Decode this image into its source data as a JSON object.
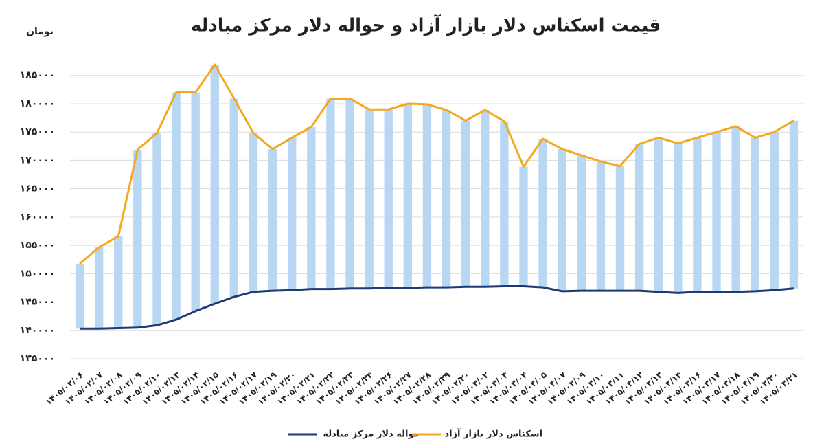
{
  "chart_data": {
    "type": "range-bar-line",
    "title": "قیمت اسکناس دلار بازار آزاد و حواله دلار مرکز مبادله",
    "y_label": "تومان",
    "categories": [
      "۱۴۰۵/۰۲/۰۶",
      "۱۴۰۵/۰۲/۰۷",
      "۱۴۰۵/۰۲/۰۸",
      "۱۴۰۵/۰۲/۰۹",
      "۱۴۰۵/۰۲/۱۰",
      "۱۴۰۵/۰۲/۱۳",
      "۱۴۰۵/۰۲/۱۴",
      "۱۴۰۵/۰۲/۱۵",
      "۱۴۰۵/۰۲/۱۶",
      "۱۴۰۵/۰۲/۱۷",
      "۱۴۰۵/۰۲/۱۹",
      "۱۴۰۵/۰۲/۲۰",
      "۱۴۰۵/۰۲/۲۱",
      "۱۴۰۵/۰۲/۲۲",
      "۱۴۰۵/۰۲/۲۳",
      "۱۴۰۵/۰۲/۲۴",
      "۱۴۰۵/۰۲/۲۶",
      "۱۴۰۵/۰۲/۲۷",
      "۱۴۰۵/۰۲/۲۸",
      "۱۴۰۵/۰۲/۲۹",
      "۱۴۰۵/۰۲/۳۰",
      "۱۴۰۵/۰۳/۰۲",
      "۱۴۰۵/۰۳/۰۳",
      "۱۴۰۵/۰۳/۰۴",
      "۱۴۰۵/۰۳/۰۵",
      "۱۴۰۵/۰۳/۰۷",
      "۱۴۰۵/۰۳/۰۹",
      "۱۴۰۵/۰۳/۱۰",
      "۱۴۰۵/۰۳/۱۱",
      "۱۴۰۵/۰۳/۱۲",
      "۱۴۰۵/۰۳/۱۳",
      "۱۴۰۵/۰۳/۱۴",
      "۱۴۰۵/۰۳/۱۶",
      "۱۴۰۵/۰۳/۱۷",
      "۱۴۰۵/۰۳/۱۸",
      "۱۴۰۵/۰۳/۱۹",
      "۱۴۰۵/۰۳/۲۰",
      "۱۴۰۵/۰۳/۲۱"
    ],
    "series": [
      {
        "name": "حواله دلار مرکز مبادله",
        "color": "#1f3a73",
        "values": [
          140300,
          140300,
          140400,
          140500,
          140900,
          141900,
          143400,
          144700,
          145900,
          146800,
          147000,
          147100,
          147300,
          147300,
          147400,
          147400,
          147500,
          147500,
          147600,
          147600,
          147700,
          147700,
          147800,
          147800,
          147600,
          146900,
          147000,
          147000,
          147000,
          147000,
          146800,
          146600,
          146800,
          146800,
          146800,
          146900,
          147100,
          147400
        ]
      },
      {
        "name": "اسکناس دلار بازار آزاد",
        "color": "#f5a81c",
        "values": [
          151750,
          154650,
          156600,
          171900,
          174800,
          182000,
          182000,
          186900,
          180900,
          174800,
          172000,
          174000,
          175900,
          180900,
          180900,
          179000,
          179000,
          180000,
          179900,
          178900,
          177000,
          178900,
          176900,
          168900,
          173800,
          172000,
          170900,
          169800,
          169000,
          172900,
          174000,
          173000,
          174000,
          175000,
          176000,
          174000,
          175000,
          177000
        ]
      }
    ],
    "bar_color": "#b8d7f3",
    "ylim": [
      135000,
      188000
    ],
    "yticks": [
      {
        "value": 135000,
        "label": "۱۳۵۰۰۰"
      },
      {
        "value": 140000,
        "label": "۱۴۰۰۰۰"
      },
      {
        "value": 145000,
        "label": "۱۴۵۰۰۰"
      },
      {
        "value": 150000,
        "label": "۱۵۰۰۰۰"
      },
      {
        "value": 155000,
        "label": "۱۵۵۰۰۰"
      },
      {
        "value": 160000,
        "label": "۱۶۰۰۰۰"
      },
      {
        "value": 165000,
        "label": "۱۶۵۰۰۰"
      },
      {
        "value": 170000,
        "label": "۱۷۰۰۰۰"
      },
      {
        "value": 175000,
        "label": "۱۷۵۰۰۰"
      },
      {
        "value": 180000,
        "label": "۱۸۰۰۰۰"
      },
      {
        "value": 185000,
        "label": "۱۸۵۰۰۰"
      }
    ],
    "grid": true
  }
}
